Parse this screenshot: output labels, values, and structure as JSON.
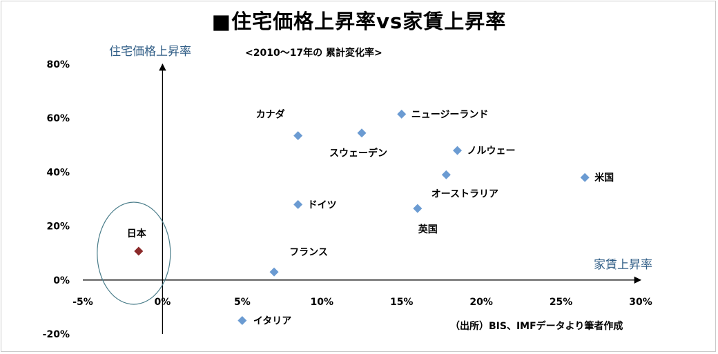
{
  "chart_data": {
    "type": "scatter",
    "title": "■住宅価格上昇率vs家賃上昇率",
    "subtitle": "<2010～17年の 累計変化率>",
    "xlabel": "家賃上昇率",
    "ylabel": "住宅価格上昇率",
    "xlim": [
      -5,
      30
    ],
    "ylim": [
      -20,
      80
    ],
    "x_ticks": [
      "-5%",
      "0%",
      "5%",
      "10%",
      "15%",
      "20%",
      "25%",
      "30%"
    ],
    "y_ticks": [
      "80%",
      "60%",
      "40%",
      "20%",
      "0%",
      "-20%"
    ],
    "grid": false,
    "points": [
      {
        "label": "日本",
        "x": -1.5,
        "y": 10.7,
        "color": "#8b2a2a"
      },
      {
        "label": "カナダ",
        "x": 8.5,
        "y": 53.5,
        "color": "#6b9bd2"
      },
      {
        "label": "スウェーデン",
        "x": 12.5,
        "y": 54.5,
        "color": "#6b9bd2"
      },
      {
        "label": "ニュージーランド",
        "x": 15.0,
        "y": 61.5,
        "color": "#6b9bd2"
      },
      {
        "label": "ノルウェー",
        "x": 18.5,
        "y": 48.0,
        "color": "#6b9bd2"
      },
      {
        "label": "オーストラリア",
        "x": 17.8,
        "y": 39.0,
        "color": "#6b9bd2"
      },
      {
        "label": "米国",
        "x": 26.5,
        "y": 38.0,
        "color": "#6b9bd2"
      },
      {
        "label": "ドイツ",
        "x": 8.5,
        "y": 28.0,
        "color": "#6b9bd2"
      },
      {
        "label": "英国",
        "x": 16.0,
        "y": 26.5,
        "color": "#6b9bd2"
      },
      {
        "label": "フランス",
        "x": 7.0,
        "y": 3.0,
        "color": "#6b9bd2"
      },
      {
        "label": "イタリア",
        "x": 5.0,
        "y": -15.0,
        "color": "#6b9bd2"
      }
    ]
  },
  "source_note": "（出所）BIS、IMFデータより筆者作成"
}
